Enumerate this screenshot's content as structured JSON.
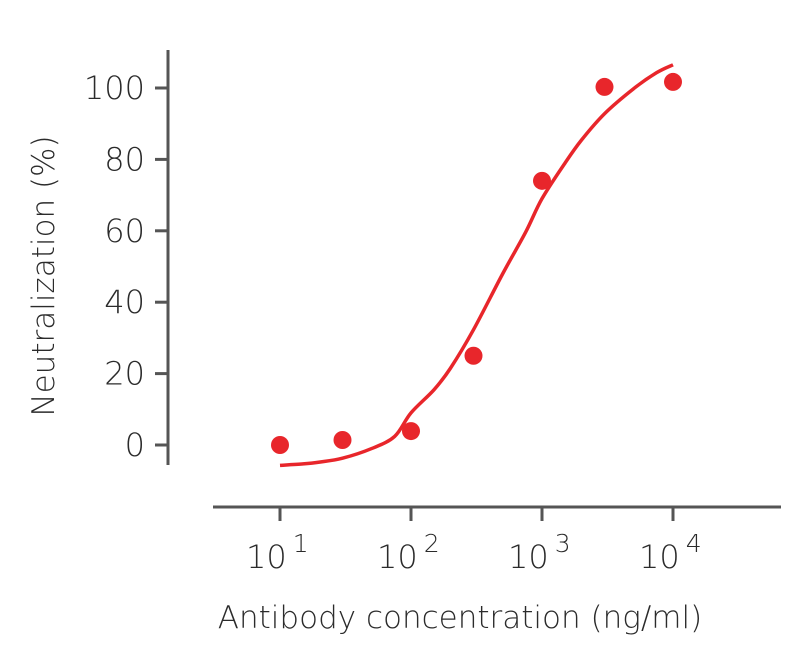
{
  "chart_data": {
    "type": "scatter",
    "title": "",
    "xlabel": "Antibody concentration (ng/ml)",
    "ylabel": "Neutralization (%)",
    "x_scale": "log",
    "xlim": [
      2,
      60000
    ],
    "ylim": [
      -18,
      118
    ],
    "x_ticks": [
      {
        "base": "10",
        "exp": "1",
        "value": 10
      },
      {
        "base": "10",
        "exp": "2",
        "value": 100
      },
      {
        "base": "10",
        "exp": "3",
        "value": 1000
      },
      {
        "base": "10",
        "exp": "4",
        "value": 10000
      }
    ],
    "y_ticks": [
      0,
      20,
      40,
      60,
      80,
      100
    ],
    "grid": false,
    "colors": {
      "series": "#e8262b",
      "axis": "#555555"
    },
    "points": {
      "x": [
        10,
        30,
        100,
        300,
        1000,
        3000,
        10000
      ],
      "y": [
        0,
        1.4,
        3.9,
        25,
        74,
        100.3,
        101.7
      ]
    },
    "fit_curve": {
      "x": [
        10,
        15,
        20,
        30,
        50,
        75,
        100,
        150,
        200,
        300,
        500,
        750,
        1000,
        1500,
        2000,
        3000,
        5000,
        7500,
        10000
      ],
      "y": [
        -5.7,
        -5.3,
        -4.8,
        -3.7,
        -1.0,
        2.4,
        9.0,
        15.5,
        21.5,
        32.3,
        47.9,
        59.6,
        69.0,
        79.0,
        85.4,
        92.8,
        99.8,
        104.3,
        106.5
      ]
    }
  }
}
